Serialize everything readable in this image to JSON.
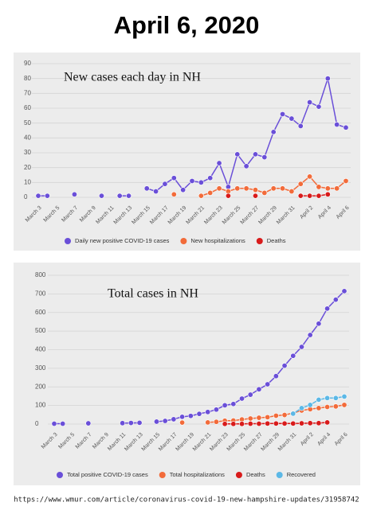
{
  "title": "April 6, 2020",
  "source": "https://www.wmur.com/article/coronavirus-covid-19-new-hampshire-updates/31958742",
  "chart_data": [
    {
      "type": "line",
      "title": "New cases each day in NH",
      "categories": [
        "March 3",
        null,
        "March 5",
        null,
        "March 7",
        null,
        "March 9",
        null,
        "March 11",
        null,
        "March 13",
        null,
        "March 15",
        null,
        "March 17",
        null,
        "March 19",
        null,
        "March 21",
        null,
        "March 23",
        null,
        "March 25",
        null,
        "March 27",
        null,
        "March 29",
        null,
        "March 31",
        null,
        "April 2",
        null,
        "April 4",
        null,
        "April 6"
      ],
      "series": [
        {
          "name": "Daily new positive COVID-19 cases",
          "color": "#6a4fd8",
          "values": [
            1,
            1,
            null,
            null,
            2,
            null,
            null,
            1,
            null,
            1,
            1,
            null,
            6,
            4,
            9,
            13,
            5,
            11,
            10,
            13,
            23,
            7,
            29,
            21,
            29,
            27,
            44,
            56,
            53,
            48,
            64,
            61,
            80,
            49,
            47
          ]
        },
        {
          "name": "New hospitalizations",
          "color": "#f26b3a",
          "values": [
            null,
            null,
            null,
            null,
            null,
            null,
            null,
            null,
            null,
            null,
            null,
            null,
            null,
            null,
            null,
            2,
            null,
            null,
            1,
            3,
            6,
            4,
            6,
            6,
            5,
            3,
            6,
            6,
            4,
            9,
            14,
            7,
            6,
            6,
            11
          ]
        },
        {
          "name": "Deaths",
          "color": "#d81b1b",
          "values": [
            null,
            null,
            null,
            null,
            null,
            null,
            null,
            null,
            null,
            null,
            null,
            null,
            null,
            null,
            null,
            null,
            null,
            null,
            null,
            null,
            null,
            1,
            null,
            null,
            1,
            null,
            null,
            null,
            null,
            1,
            1,
            1,
            2,
            null,
            null
          ]
        }
      ],
      "ylim": [
        0,
        90
      ],
      "yticks": [
        0,
        10,
        20,
        30,
        40,
        50,
        60,
        70,
        80,
        90
      ],
      "grid": true,
      "legend": "bottom"
    },
    {
      "type": "line",
      "title": "Total cases in NH",
      "categories": [
        "March 3",
        null,
        "March 5",
        null,
        "March 7",
        null,
        "March 9",
        null,
        "March 11",
        null,
        "March 13",
        null,
        "March 15",
        null,
        "March 17",
        null,
        "March 19",
        null,
        "March 21",
        null,
        "March 23",
        null,
        "March 25",
        null,
        "March 27",
        null,
        "March 29",
        null,
        "March 31",
        null,
        "April 2",
        null,
        "April 4",
        null,
        "April 6"
      ],
      "series": [
        {
          "name": "Total positive COVID-19 cases",
          "color": "#6a4fd8",
          "values": [
            2,
            2,
            null,
            null,
            4,
            null,
            null,
            null,
            5,
            6,
            7,
            null,
            13,
            17,
            26,
            39,
            44,
            55,
            65,
            78,
            101,
            108,
            137,
            158,
            187,
            214,
            258,
            314,
            367,
            415,
            479,
            540,
            621,
            669,
            715
          ]
        },
        {
          "name": "Total hospitalizations",
          "color": "#f26b3a",
          "values": [
            null,
            null,
            null,
            null,
            null,
            null,
            null,
            null,
            null,
            null,
            null,
            null,
            null,
            null,
            null,
            8,
            null,
            null,
            9,
            12,
            18,
            19,
            25,
            30,
            34,
            37,
            45,
            49,
            59,
            73,
            80,
            86,
            92,
            95,
            103
          ]
        },
        {
          "name": "Deaths",
          "color": "#d81b1b",
          "values": [
            null,
            null,
            null,
            null,
            null,
            null,
            null,
            null,
            null,
            null,
            null,
            null,
            null,
            null,
            null,
            null,
            null,
            null,
            null,
            null,
            1,
            1,
            1,
            2,
            2,
            3,
            3,
            3,
            3,
            4,
            5,
            5,
            9,
            null,
            null
          ]
        },
        {
          "name": "Recovered",
          "color": "#5cb8e6",
          "values": [
            null,
            null,
            null,
            null,
            null,
            null,
            null,
            null,
            null,
            null,
            null,
            null,
            null,
            null,
            null,
            null,
            null,
            null,
            null,
            null,
            null,
            null,
            null,
            null,
            null,
            null,
            null,
            null,
            56,
            86,
            103,
            131,
            140,
            140,
            148
          ]
        }
      ],
      "ylim": [
        0,
        800
      ],
      "yticks": [
        0,
        100,
        200,
        300,
        400,
        500,
        600,
        700,
        800
      ],
      "grid": true,
      "legend": "bottom"
    }
  ]
}
